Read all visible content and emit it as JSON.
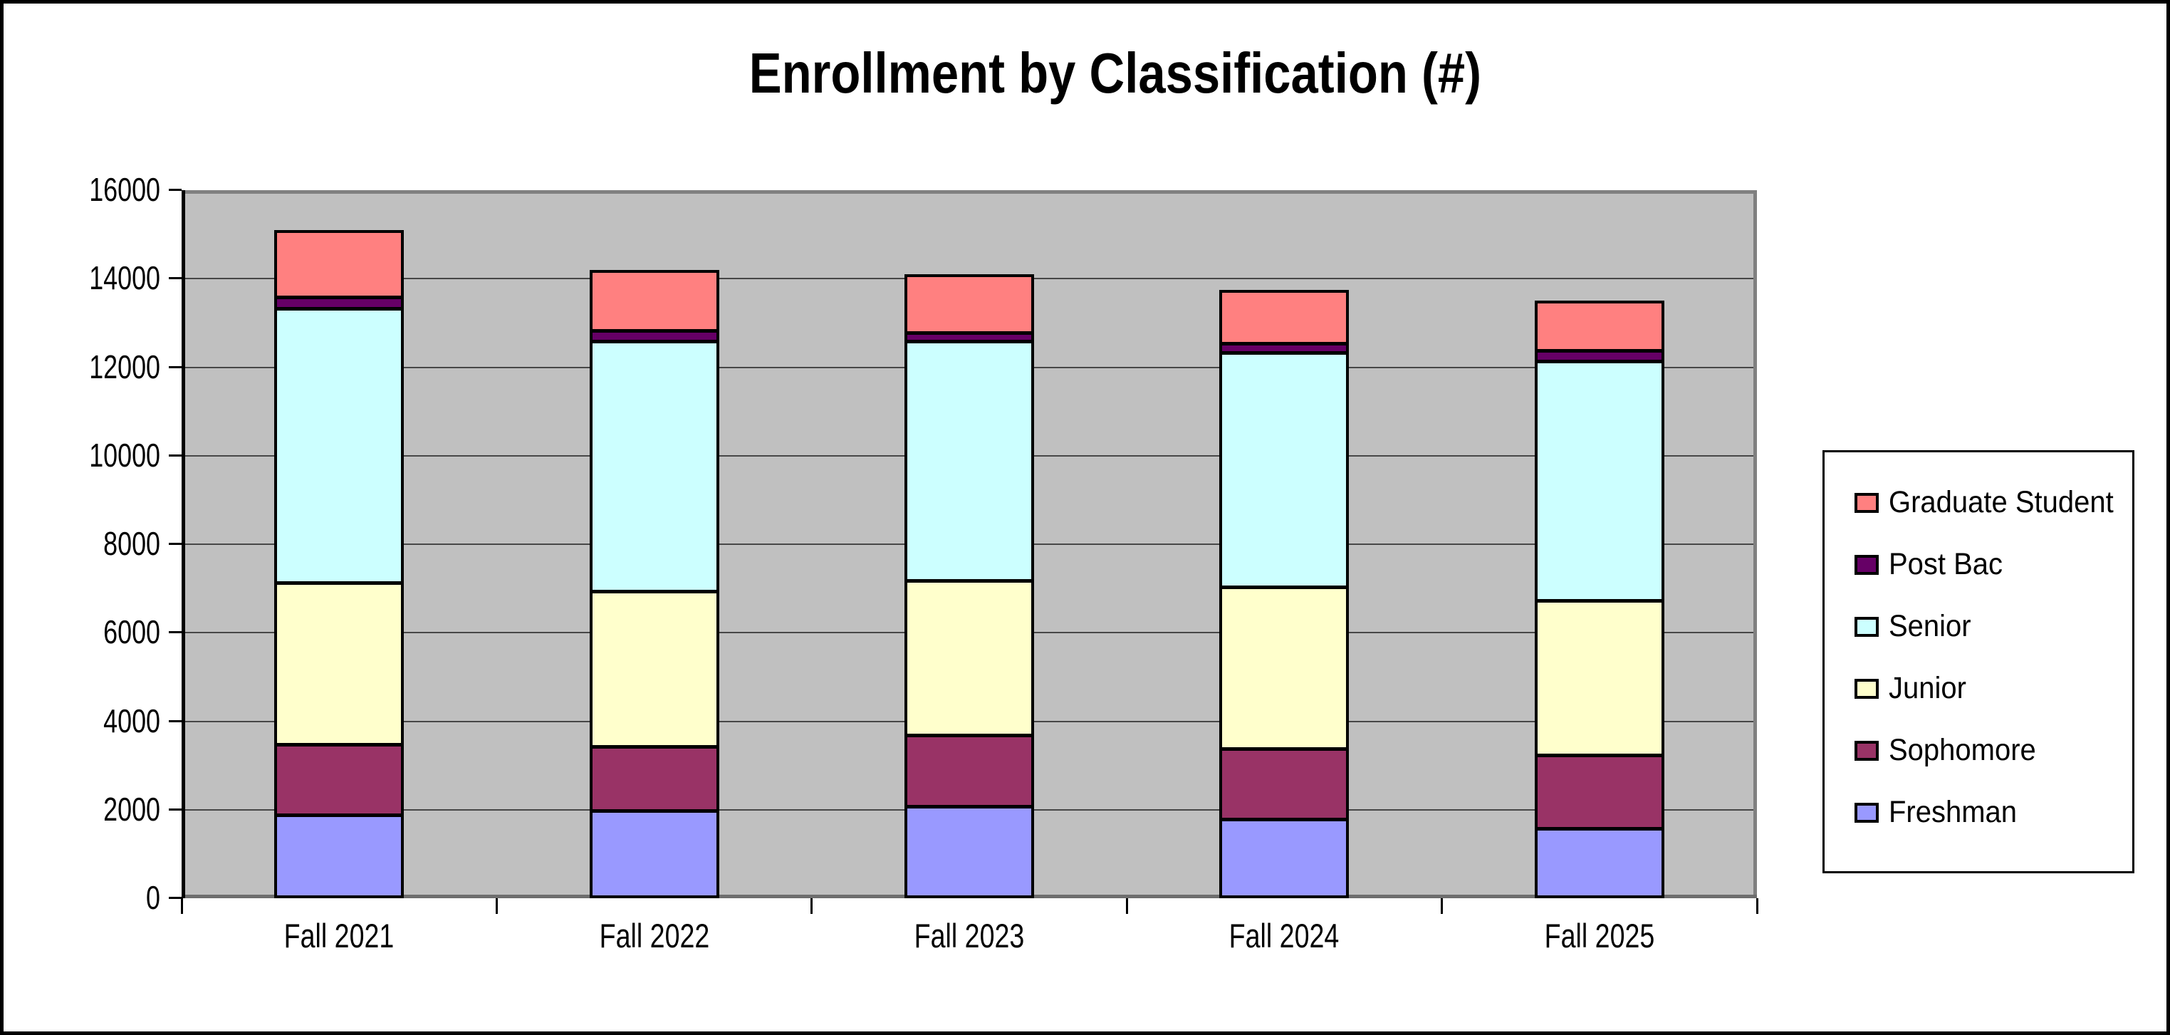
{
  "title": "Enrollment by Classification (#)",
  "chart_data": {
    "type": "bar",
    "stacked": true,
    "title": "Enrollment by Classification (#)",
    "categories": [
      "Fall 2021",
      "Fall 2022",
      "Fall 2023",
      "Fall 2024",
      "Fall 2025"
    ],
    "series": [
      {
        "name": "Freshman",
        "color": "#9999FF",
        "values": [
          1900,
          2000,
          2100,
          1800,
          1600
        ]
      },
      {
        "name": "Sophomore",
        "color": "#993366",
        "values": [
          1600,
          1450,
          1600,
          1600,
          1650
        ]
      },
      {
        "name": "Junior",
        "color": "#FFFFCC",
        "values": [
          3650,
          3500,
          3500,
          3650,
          3500
        ]
      },
      {
        "name": "Senior",
        "color": "#CCFFFF",
        "values": [
          6200,
          5650,
          5400,
          5300,
          5400
        ]
      },
      {
        "name": "Post Bac",
        "color": "#660066",
        "values": [
          250,
          250,
          200,
          200,
          250
        ]
      },
      {
        "name": "Graduate Student",
        "color": "#FF8080",
        "values": [
          1500,
          1350,
          1300,
          1200,
          1100
        ]
      }
    ],
    "y_axis": {
      "min": 0,
      "max": 16000,
      "step": 2000,
      "tick_labels": [
        "0",
        "2000",
        "4000",
        "6000",
        "8000",
        "10000",
        "12000",
        "14000",
        "16000"
      ]
    },
    "legend_order": [
      "Graduate Student",
      "Post Bac",
      "Senior",
      "Junior",
      "Sophomore",
      "Freshman"
    ],
    "legend_position": "right",
    "grid": true,
    "plot_background": "#C0C0C0",
    "gridline_color": "#474747",
    "bar_border_color": "#000000"
  }
}
